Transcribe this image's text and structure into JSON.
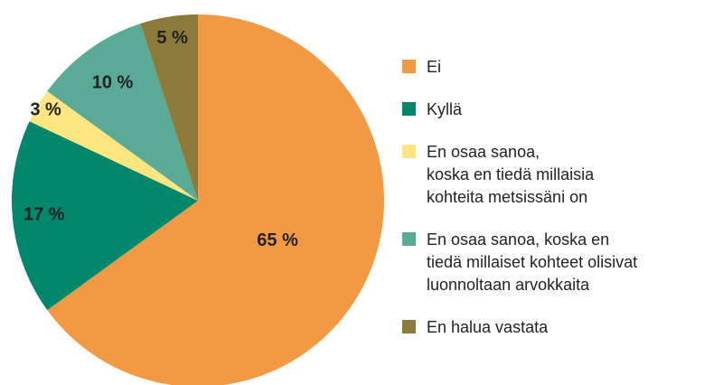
{
  "chart_data": {
    "type": "pie",
    "categories": [
      "Ei",
      "Kyllä",
      "En osaa sanoa,\nkoska en tiedä millaisia\nkohteita metsissäni on",
      "En osaa sanoa, koska en\ntiedä millaiset kohteet olisivat\nluonnoltaan arvokkaita",
      "En halua vastata"
    ],
    "values": [
      65,
      17,
      3,
      10,
      5
    ],
    "value_labels": [
      "65 %",
      "17 %",
      "3 %",
      "10 %",
      "5 %"
    ],
    "colors": [
      "#f29943",
      "#00876c",
      "#fde57f",
      "#5aab96",
      "#8c7a3a"
    ],
    "legend": "right"
  }
}
